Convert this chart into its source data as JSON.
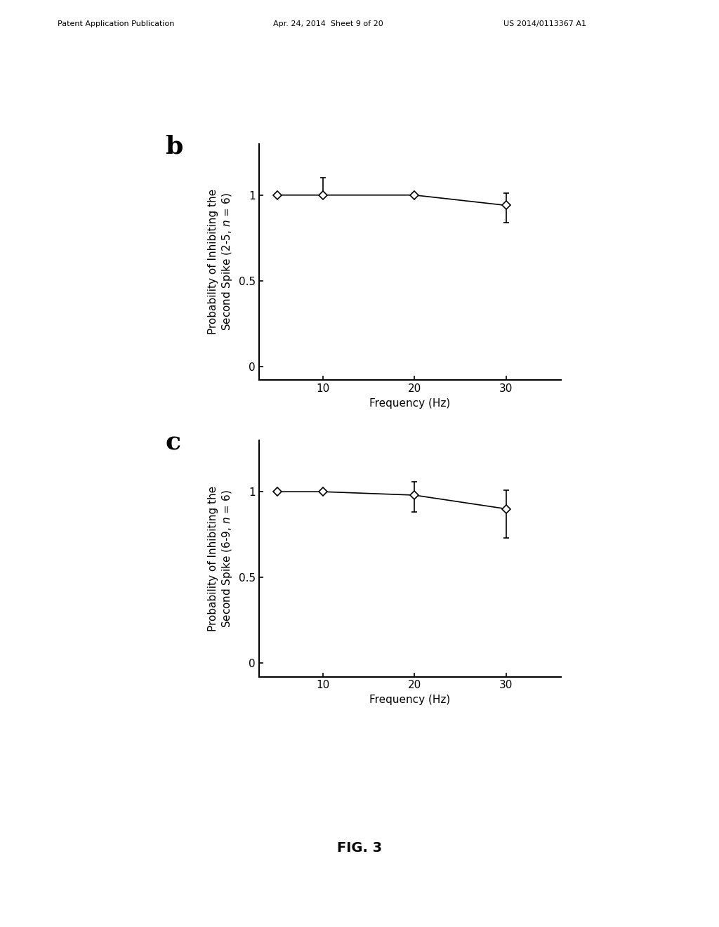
{
  "panel_b": {
    "label": "b",
    "x": [
      5,
      10,
      20,
      30
    ],
    "y": [
      1.0,
      1.0,
      1.0,
      0.94
    ],
    "yerr_lower": [
      0.0,
      0.0,
      0.0,
      0.1
    ],
    "yerr_upper": [
      0.0,
      0.1,
      0.0,
      0.07
    ],
    "ylabel_line1": "Probability of Inhibiting the",
    "ylabel_line2": "Second Spike (2-5, ",
    "ylabel_n": "n",
    "ylabel_line3": " = 6)",
    "xlabel": "Frequency (Hz)",
    "yticks": [
      0,
      0.5,
      1
    ],
    "yticklabels": [
      "0",
      "0.5",
      "1"
    ],
    "xticks": [
      10,
      20,
      30
    ],
    "ylim": [
      -0.08,
      1.3
    ],
    "xlim": [
      3,
      36
    ]
  },
  "panel_c": {
    "label": "c",
    "x": [
      5,
      10,
      20,
      30
    ],
    "y": [
      1.0,
      1.0,
      0.98,
      0.9
    ],
    "yerr_lower": [
      0.0,
      0.0,
      0.1,
      0.17
    ],
    "yerr_upper": [
      0.0,
      0.0,
      0.08,
      0.11
    ],
    "ylabel_line1": "Probability of Inhibiting the",
    "ylabel_line2": "Second Spike (6-9, ",
    "ylabel_n": "n",
    "ylabel_line3": " = 6)",
    "xlabel": "Frequency (Hz)",
    "yticks": [
      0,
      0.5,
      1
    ],
    "yticklabels": [
      "0",
      "0.5",
      "1"
    ],
    "xticks": [
      10,
      20,
      30
    ],
    "ylim": [
      -0.08,
      1.3
    ],
    "xlim": [
      3,
      36
    ]
  },
  "fig_label": "FIG. 3",
  "header_left": "Patent Application Publication",
  "header_mid": "Apr. 24, 2014  Sheet 9 of 20",
  "header_right": "US 2014/0113367 A1",
  "background_color": "#ffffff",
  "line_color": "#000000",
  "marker_color": "#ffffff",
  "marker_edge_color": "#000000",
  "marker_size": 6,
  "line_width": 1.2,
  "font_size_panel_label": 26,
  "font_size_axis_label": 11,
  "font_size_tick": 11,
  "font_size_fig_label": 14,
  "font_size_header": 8
}
